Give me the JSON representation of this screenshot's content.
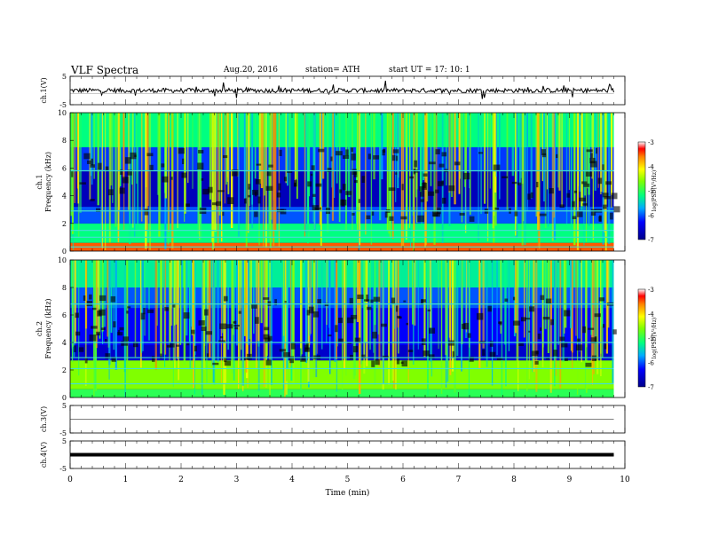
{
  "header": {
    "title": "VLF  Spectra",
    "date": "Aug.20, 2016",
    "station": "station= ATH",
    "start": "start  UT  =    17: 10: 1"
  },
  "chart_data": [
    {
      "type": "line",
      "panel": "ch1-waveform",
      "ylabel": "ch.1(V)",
      "ylim": [
        -5,
        5
      ],
      "yticks": [
        "5",
        "-5"
      ],
      "xlim": [
        0,
        10
      ],
      "x_end": 9.8,
      "baseline": 0
    },
    {
      "type": "heatmap",
      "panel": "ch1-spectrogram",
      "ylabel": "ch.1\nFrequency  (kHz)",
      "ylim": [
        0,
        10
      ],
      "yticks": [
        "0",
        "2",
        "4",
        "6",
        "8",
        "10"
      ],
      "xlim": [
        0,
        10
      ],
      "x_end": 9.8,
      "colorbar": {
        "label": "log(PSD(V²/Hz)",
        "range": [
          -7,
          -3
        ],
        "ticks": [
          "-3",
          "-4",
          "-5",
          "-6",
          "-7"
        ]
      },
      "bands": [
        {
          "from": 0,
          "to": 0.6,
          "level": -3.5
        },
        {
          "from": 0.6,
          "to": 2.0,
          "level": -5.2
        },
        {
          "from": 2.0,
          "to": 3.2,
          "level": -6.0
        },
        {
          "from": 3.2,
          "to": 5.8,
          "level": -6.7
        },
        {
          "from": 5.8,
          "to": 7.5,
          "level": -6.1
        },
        {
          "from": 7.5,
          "to": 10,
          "level": -5.2
        }
      ],
      "lines_khz": [
        0.3,
        1.0,
        1.5,
        2.9,
        5.8
      ]
    },
    {
      "type": "heatmap",
      "panel": "ch2-spectrogram",
      "ylabel": "ch.2\nFrequency  (kHz)",
      "ylim": [
        0,
        10
      ],
      "yticks": [
        "0",
        "2",
        "4",
        "6",
        "8",
        "10"
      ],
      "xlim": [
        0,
        10
      ],
      "x_end": 9.8,
      "colorbar": {
        "label": "log(PSD(V²/Hz)",
        "range": [
          -7,
          -3
        ],
        "ticks": [
          "-3",
          "-4",
          "-5",
          "-6",
          "-7"
        ]
      },
      "bands": [
        {
          "from": 0,
          "to": 0.6,
          "level": -5.0
        },
        {
          "from": 0.6,
          "to": 2.7,
          "level": -4.6
        },
        {
          "from": 2.7,
          "to": 3.8,
          "level": -6.6
        },
        {
          "from": 3.8,
          "to": 6.5,
          "level": -6.3
        },
        {
          "from": 6.5,
          "to": 8.0,
          "level": -6.0
        },
        {
          "from": 8.0,
          "to": 10,
          "level": -5.3
        }
      ],
      "lines_khz": [
        1.0,
        2.1,
        2.9,
        4.0,
        6.8
      ]
    },
    {
      "type": "line",
      "panel": "ch3-waveform",
      "ylabel": "ch.3(V)",
      "ylim": [
        -5,
        5
      ],
      "yticks": [
        "5",
        "-5"
      ],
      "xlim": [
        0,
        10
      ],
      "x_end": 9.8,
      "baseline": 0
    },
    {
      "type": "line",
      "panel": "ch4-waveform",
      "ylabel": "ch.4(V)",
      "ylim": [
        -5,
        5
      ],
      "yticks": [
        "5",
        "-5"
      ],
      "xlim": [
        0,
        10
      ],
      "x_end": 9.8,
      "baseline": 0
    }
  ],
  "xaxis": {
    "label": "Time  (min)",
    "ticks": [
      "0",
      "1",
      "2",
      "3",
      "4",
      "5",
      "6",
      "7",
      "8",
      "9",
      "10"
    ]
  }
}
